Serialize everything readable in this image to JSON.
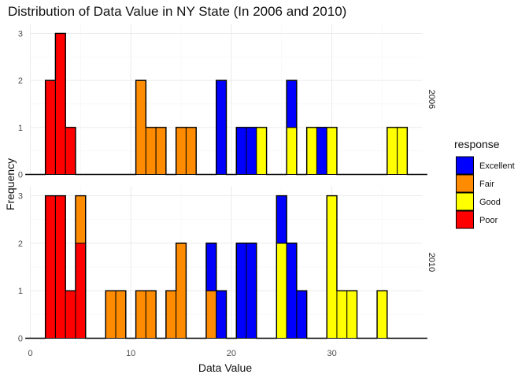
{
  "chart_data": {
    "type": "bar",
    "title": "Distribution of Data Value in NY State (In 2006 and 2010)",
    "xlabel": "Data Value",
    "ylabel": "Frequency",
    "xlim": [
      0,
      39
    ],
    "xticks": [
      0,
      10,
      20,
      30
    ],
    "ylim": [
      0,
      3.2
    ],
    "yticks": [
      0,
      1,
      2,
      3
    ],
    "bin_width": 1,
    "grid": true,
    "legend": {
      "title": "response",
      "position": "right",
      "entries": [
        {
          "name": "Excellent",
          "color": "#0000ff"
        },
        {
          "name": "Fair",
          "color": "#ff8c00"
        },
        {
          "name": "Good",
          "color": "#ffff00"
        },
        {
          "name": "Poor",
          "color": "#ff0000"
        }
      ]
    },
    "panels": [
      {
        "label": "2006",
        "bins": [
          {
            "x": 2,
            "Poor": 2
          },
          {
            "x": 3,
            "Poor": 3
          },
          {
            "x": 4,
            "Poor": 1
          },
          {
            "x": 11,
            "Fair": 2
          },
          {
            "x": 12,
            "Fair": 1
          },
          {
            "x": 13,
            "Fair": 1
          },
          {
            "x": 15,
            "Fair": 1
          },
          {
            "x": 16,
            "Fair": 1
          },
          {
            "x": 19,
            "Excellent": 2
          },
          {
            "x": 21,
            "Excellent": 1
          },
          {
            "x": 22,
            "Excellent": 1
          },
          {
            "x": 23,
            "Good": 1
          },
          {
            "x": 26,
            "Good": 1,
            "Excellent": 1
          },
          {
            "x": 28,
            "Good": 1
          },
          {
            "x": 29,
            "Excellent": 1
          },
          {
            "x": 30,
            "Good": 1
          },
          {
            "x": 36,
            "Good": 1
          },
          {
            "x": 37,
            "Good": 1
          }
        ]
      },
      {
        "label": "2010",
        "bins": [
          {
            "x": 2,
            "Poor": 3
          },
          {
            "x": 3,
            "Poor": 3
          },
          {
            "x": 4,
            "Poor": 1
          },
          {
            "x": 5,
            "Poor": 2,
            "Fair": 1
          },
          {
            "x": 8,
            "Fair": 1
          },
          {
            "x": 9,
            "Fair": 1
          },
          {
            "x": 11,
            "Fair": 1
          },
          {
            "x": 12,
            "Fair": 1
          },
          {
            "x": 14,
            "Fair": 1
          },
          {
            "x": 15,
            "Fair": 2
          },
          {
            "x": 18,
            "Fair": 1,
            "Excellent": 1
          },
          {
            "x": 19,
            "Excellent": 1
          },
          {
            "x": 21,
            "Excellent": 2
          },
          {
            "x": 22,
            "Excellent": 2
          },
          {
            "x": 25,
            "Good": 2,
            "Excellent": 1
          },
          {
            "x": 26,
            "Excellent": 2
          },
          {
            "x": 27,
            "Excellent": 1
          },
          {
            "x": 30,
            "Good": 3
          },
          {
            "x": 31,
            "Good": 1
          },
          {
            "x": 32,
            "Good": 1
          },
          {
            "x": 35,
            "Good": 1
          }
        ]
      }
    ]
  }
}
